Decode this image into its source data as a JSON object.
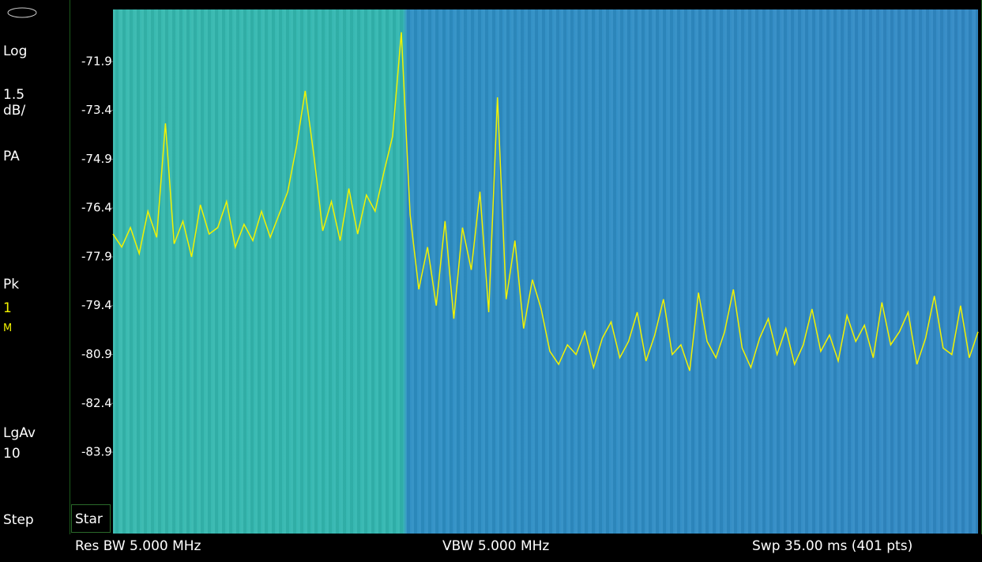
{
  "panel": {
    "scale_type": "Log",
    "scale_value": "1.5",
    "scale_unit": "dB/",
    "preamp": "PA",
    "detector": "Pk",
    "trace_number": "1",
    "trace_mode": "M",
    "average_type": "LgAv",
    "average_count": "10",
    "step": "Step"
  },
  "softkey": "Star",
  "status_bar": {
    "res_bw": "Res BW 5.000 MHz",
    "vbw": "VBW 5.000 MHz",
    "sweep": "Swp 35.00 ms (401 pts)"
  },
  "chart_data": {
    "type": "line",
    "ylim": [
      -70.3,
      -86.4
    ],
    "yticks": [
      -71.9,
      -73.4,
      -74.9,
      -76.4,
      -77.9,
      -79.4,
      -80.9,
      -82.4,
      -83.9
    ],
    "series": [
      {
        "color": "#f2f200",
        "values": [
          -77.2,
          -77.6,
          -77.0,
          -77.8,
          -76.5,
          -77.3,
          -73.8,
          -77.5,
          -76.8,
          -77.9,
          -76.3,
          -77.2,
          -77.0,
          -76.2,
          -77.6,
          -76.9,
          -77.4,
          -76.5,
          -77.3,
          -76.6,
          -75.9,
          -74.5,
          -72.8,
          -74.8,
          -77.1,
          -76.2,
          -77.4,
          -75.8,
          -77.2,
          -76.0,
          -76.5,
          -75.3,
          -74.2,
          -71.0,
          -76.6,
          -78.9,
          -77.6,
          -79.4,
          -76.8,
          -79.8,
          -77.0,
          -78.3,
          -75.9,
          -79.6,
          -73.0,
          -79.2,
          -77.4,
          -80.1,
          -78.6,
          -79.5,
          -80.8,
          -81.2,
          -80.6,
          -80.9,
          -80.2,
          -81.3,
          -80.4,
          -79.9,
          -81.0,
          -80.5,
          -79.6,
          -81.1,
          -80.3,
          -79.2,
          -80.9,
          -80.6,
          -81.4,
          -79.0,
          -80.5,
          -81.0,
          -80.2,
          -78.9,
          -80.7,
          -81.3,
          -80.4,
          -79.8,
          -80.9,
          -80.1,
          -81.2,
          -80.6,
          -79.5,
          -80.8,
          -80.3,
          -81.1,
          -79.7,
          -80.5,
          -80.0,
          -81.0,
          -79.3,
          -80.6,
          -80.2,
          -79.6,
          -81.2,
          -80.4,
          -79.1,
          -80.7,
          -80.9,
          -79.4,
          -81.0,
          -80.2
        ]
      }
    ]
  }
}
